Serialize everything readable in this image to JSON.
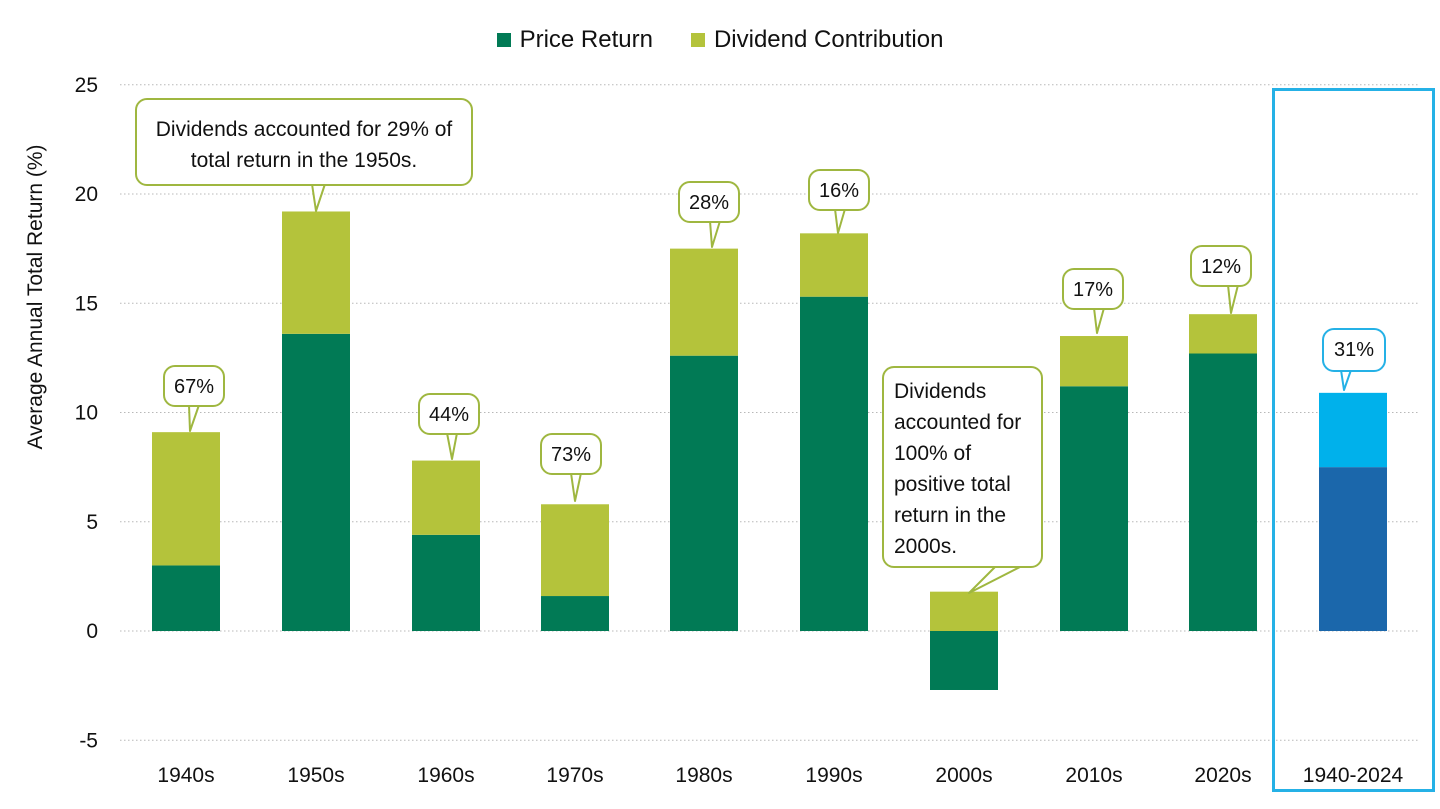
{
  "legend": [
    {
      "label": "Price Return",
      "color": "#017a55"
    },
    {
      "label": "Dividend Contribution",
      "color": "#b4c33b"
    }
  ],
  "y_axis_label": "Average Annual Total Return (%)",
  "callouts": {
    "c1950s": "Dividends accounted for 29% of total return in the 1950s.",
    "c2000s": "Dividends accounted for 100% of positive total return in the 2000s.",
    "c1940s": "67%",
    "c1960s": "44%",
    "c1970s": "73%",
    "c1980s": "28%",
    "c1990s": "16%",
    "c2010s": "17%",
    "c2020s": "12%",
    "c1940_2024": "31%"
  },
  "chart_data": {
    "type": "bar",
    "stacked": true,
    "categories": [
      "1940s",
      "1950s",
      "1960s",
      "1970s",
      "1980s",
      "1990s",
      "2000s",
      "2010s",
      "2020s",
      "1940-2024"
    ],
    "series": [
      {
        "name": "Price Return",
        "values": [
          3.0,
          13.6,
          4.4,
          1.6,
          12.6,
          15.3,
          -2.7,
          11.2,
          12.7,
          7.5
        ]
      },
      {
        "name": "Dividend Contribution",
        "values": [
          6.1,
          5.6,
          3.4,
          4.2,
          4.9,
          2.9,
          1.8,
          2.3,
          1.8,
          3.4
        ]
      }
    ],
    "highlight_category": "1940-2024",
    "highlight_colors": {
      "Price Return": "#1b67ab",
      "Dividend Contribution": "#00b1eb",
      "frame": "#25b1e6"
    },
    "ylabel": "Average Annual Total Return (%)",
    "ylim": [
      -5,
      25
    ],
    "yticks": [
      -5,
      0,
      5,
      10,
      15,
      20,
      25
    ],
    "grid": true,
    "legend_position": "top-center"
  }
}
